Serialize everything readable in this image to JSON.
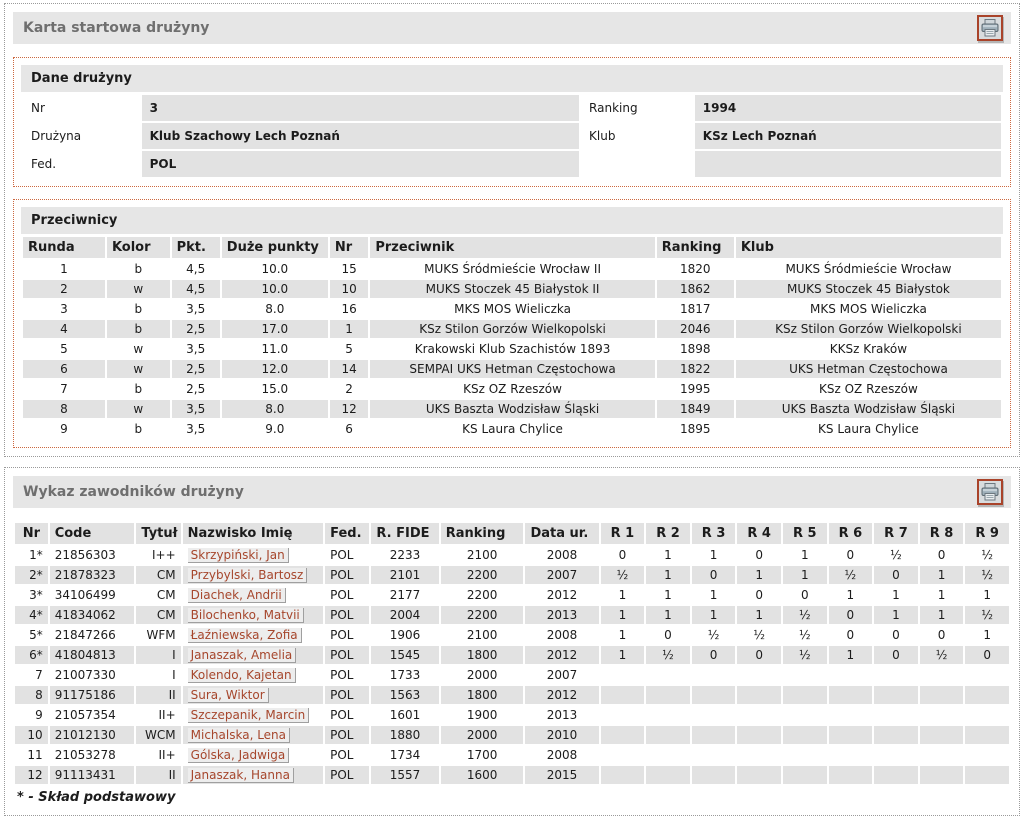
{
  "icons": {
    "print": "printer-icon"
  },
  "team_card": {
    "title": "Karta startowa drużyny"
  },
  "team_info": {
    "title": "Dane drużyny",
    "rows": [
      {
        "l1": "Nr",
        "v1": "3",
        "l2": "Ranking",
        "v2": "1994"
      },
      {
        "l1": "Drużyna",
        "v1": "Klub Szachowy Lech Poznań",
        "l2": "Klub",
        "v2": "KSz Lech Poznań"
      },
      {
        "l1": "Fed.",
        "v1": "POL",
        "l2": "",
        "v2": ""
      }
    ]
  },
  "opponents": {
    "title": "Przeciwnicy",
    "columns": [
      "Runda",
      "Kolor",
      "Pkt.",
      "Duże punkty",
      "Nr",
      "Przeciwnik",
      "Ranking",
      "Klub"
    ],
    "rows": [
      [
        "1",
        "b",
        "4,5",
        "10.0",
        "15",
        "MUKS Śródmieście Wrocław II",
        "1820",
        "MUKS Śródmieście Wrocław"
      ],
      [
        "2",
        "w",
        "4,5",
        "10.0",
        "10",
        "MUKS Stoczek 45 Białystok II",
        "1862",
        "MUKS Stoczek 45 Białystok"
      ],
      [
        "3",
        "b",
        "3,5",
        "8.0",
        "16",
        "MKS MOS Wieliczka",
        "1817",
        "MKS MOS Wieliczka"
      ],
      [
        "4",
        "b",
        "2,5",
        "17.0",
        "1",
        "KSz Stilon Gorzów Wielkopolski",
        "2046",
        "KSz Stilon Gorzów Wielkopolski"
      ],
      [
        "5",
        "w",
        "3,5",
        "11.0",
        "5",
        "Krakowski Klub Szachistów 1893",
        "1898",
        "KKSz Kraków"
      ],
      [
        "6",
        "w",
        "2,5",
        "12.0",
        "14",
        "SEMPAI UKS Hetman Częstochowa",
        "1822",
        "UKS Hetman Częstochowa"
      ],
      [
        "7",
        "b",
        "2,5",
        "15.0",
        "2",
        "KSz OZ Rzeszów",
        "1995",
        "KSz OZ Rzeszów"
      ],
      [
        "8",
        "w",
        "3,5",
        "8.0",
        "12",
        "UKS Baszta Wodzisław Śląski",
        "1849",
        "UKS Baszta Wodzisław Śląski"
      ],
      [
        "9",
        "b",
        "3,5",
        "9.0",
        "6",
        "KS Laura Chylice",
        "1895",
        "KS Laura Chylice"
      ]
    ]
  },
  "players_card": {
    "title": "Wykaz zawodników drużyny",
    "footnote": "* - Skład podstawowy"
  },
  "players": {
    "columns": [
      "Nr",
      "Code",
      "Tytuł",
      "Nazwisko Imię",
      "Fed.",
      "R. FIDE",
      "Ranking",
      "Data ur.",
      "R 1",
      "R 2",
      "R 3",
      "R 4",
      "R 5",
      "R 6",
      "R 7",
      "R 8",
      "R 9"
    ],
    "rows": [
      {
        "nr": "1*",
        "code": "21856303",
        "title": "I++",
        "name": "Skrzypiński, Jan",
        "fed": "POL",
        "rfide": "2233",
        "ranking": "2100",
        "born": "2008",
        "rounds": [
          "0",
          "1",
          "1",
          "0",
          "1",
          "0",
          "½",
          "0",
          "½"
        ]
      },
      {
        "nr": "2*",
        "code": "21878323",
        "title": "CM",
        "name": "Przybylski, Bartosz",
        "fed": "POL",
        "rfide": "2101",
        "ranking": "2200",
        "born": "2007",
        "rounds": [
          "½",
          "1",
          "0",
          "1",
          "1",
          "½",
          "0",
          "1",
          "½"
        ]
      },
      {
        "nr": "3*",
        "code": "34106499",
        "title": "CM",
        "name": "Diachek, Andrii",
        "fed": "POL",
        "rfide": "2177",
        "ranking": "2200",
        "born": "2012",
        "rounds": [
          "1",
          "1",
          "1",
          "0",
          "0",
          "1",
          "1",
          "1",
          "1"
        ]
      },
      {
        "nr": "4*",
        "code": "41834062",
        "title": "CM",
        "name": "Bilochenko, Matvii",
        "fed": "POL",
        "rfide": "2004",
        "ranking": "2200",
        "born": "2013",
        "rounds": [
          "1",
          "1",
          "1",
          "1",
          "½",
          "0",
          "1",
          "1",
          "½"
        ]
      },
      {
        "nr": "5*",
        "code": "21847266",
        "title": "WFM",
        "name": "Łaźniewska, Zofia",
        "fed": "POL",
        "rfide": "1906",
        "ranking": "2100",
        "born": "2008",
        "rounds": [
          "1",
          "0",
          "½",
          "½",
          "½",
          "0",
          "0",
          "0",
          "1"
        ]
      },
      {
        "nr": "6*",
        "code": "41804813",
        "title": "I",
        "name": "Janaszak, Amelia",
        "fed": "POL",
        "rfide": "1545",
        "ranking": "1800",
        "born": "2012",
        "rounds": [
          "1",
          "½",
          "0",
          "0",
          "½",
          "1",
          "0",
          "½",
          "0"
        ]
      },
      {
        "nr": "7",
        "code": "21007330",
        "title": "I",
        "name": "Kolendo, Kajetan",
        "fed": "POL",
        "rfide": "1733",
        "ranking": "2000",
        "born": "2007",
        "rounds": [
          "",
          "",
          "",
          "",
          "",
          "",
          "",
          "",
          ""
        ]
      },
      {
        "nr": "8",
        "code": "91175186",
        "title": "II",
        "name": "Sura, Wiktor",
        "fed": "POL",
        "rfide": "1563",
        "ranking": "1800",
        "born": "2012",
        "rounds": [
          "",
          "",
          "",
          "",
          "",
          "",
          "",
          "",
          ""
        ]
      },
      {
        "nr": "9",
        "code": "21057354",
        "title": "II+",
        "name": "Szczepanik, Marcin",
        "fed": "POL",
        "rfide": "1601",
        "ranking": "1900",
        "born": "2013",
        "rounds": [
          "",
          "",
          "",
          "",
          "",
          "",
          "",
          "",
          ""
        ]
      },
      {
        "nr": "10",
        "code": "21012130",
        "title": "WCM",
        "name": "Michalska, Lena",
        "fed": "POL",
        "rfide": "1880",
        "ranking": "2000",
        "born": "2010",
        "rounds": [
          "",
          "",
          "",
          "",
          "",
          "",
          "",
          "",
          ""
        ]
      },
      {
        "nr": "11",
        "code": "21053278",
        "title": "II+",
        "name": "Gólska, Jadwiga",
        "fed": "POL",
        "rfide": "1734",
        "ranking": "1700",
        "born": "2008",
        "rounds": [
          "",
          "",
          "",
          "",
          "",
          "",
          "",
          "",
          ""
        ]
      },
      {
        "nr": "12",
        "code": "91113431",
        "title": "II",
        "name": "Janaszak, Hanna",
        "fed": "POL",
        "rfide": "1557",
        "ranking": "1600",
        "born": "2015",
        "rounds": [
          "",
          "",
          "",
          "",
          "",
          "",
          "",
          "",
          ""
        ]
      }
    ]
  }
}
